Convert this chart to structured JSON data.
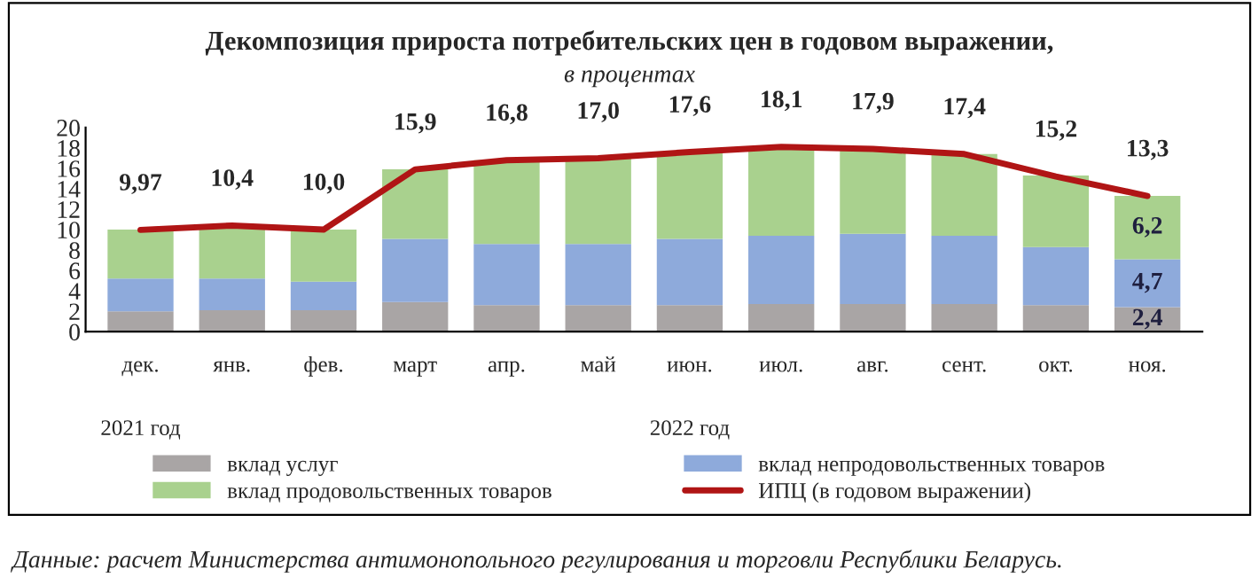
{
  "chart_data": {
    "type": "bar",
    "stacked": true,
    "title": "Декомпозиция прироста потребительских цен в годовом выражении,",
    "subtitle": "в процентах",
    "categories": [
      "дек.",
      "янв.",
      "фев.",
      "март",
      "апр.",
      "май",
      "июн.",
      "июл.",
      "авг.",
      "сент.",
      "окт.",
      "ноя."
    ],
    "series": [
      {
        "name": "вклад услуг",
        "color": "#a9a5a5",
        "values": [
          2.0,
          2.1,
          2.1,
          2.9,
          2.6,
          2.6,
          2.6,
          2.7,
          2.7,
          2.7,
          2.6,
          2.4
        ],
        "value_labels": [
          null,
          null,
          null,
          null,
          null,
          null,
          null,
          null,
          null,
          null,
          null,
          "2,4"
        ]
      },
      {
        "name": "вклад непродовольственных товаров",
        "color": "#8eaadb",
        "values": [
          3.2,
          3.1,
          2.8,
          6.2,
          6.0,
          6.0,
          6.5,
          6.7,
          6.9,
          6.7,
          5.7,
          4.7
        ],
        "value_labels": [
          null,
          null,
          null,
          null,
          null,
          null,
          null,
          null,
          null,
          null,
          null,
          "4,7"
        ]
      },
      {
        "name": "вклад продовольственных товаров",
        "color": "#a9d18e",
        "values": [
          4.8,
          5.2,
          5.1,
          6.8,
          8.2,
          8.4,
          8.5,
          8.7,
          8.3,
          8.0,
          7.0,
          6.2
        ],
        "value_labels": [
          null,
          null,
          null,
          null,
          null,
          null,
          null,
          null,
          null,
          null,
          null,
          "6,2"
        ]
      },
      {
        "name": "ИПЦ (в годовом выражении)",
        "type": "line",
        "color": "#b01515",
        "values": [
          9.97,
          10.4,
          10.0,
          15.9,
          16.8,
          17.0,
          17.6,
          18.1,
          17.9,
          17.4,
          15.2,
          13.3
        ],
        "value_labels": [
          "9,97",
          "10,4",
          "10,0",
          "15,9",
          "16,8",
          "17,0",
          "17,6",
          "18,1",
          "17,9",
          "17,4",
          "15,2",
          "13,3"
        ]
      }
    ],
    "ylim": [
      0,
      20
    ],
    "yticks": [
      0,
      2,
      4,
      6,
      8,
      10,
      12,
      14,
      16,
      18,
      20
    ],
    "grid": false,
    "legend": "bottom",
    "marker": "none",
    "line_style": "solid",
    "annotations": [
      "2021 год",
      "2022 год",
      "Данные: расчет Министерства антимонопольного регулирования и торговли Республики Беларусь."
    ]
  }
}
